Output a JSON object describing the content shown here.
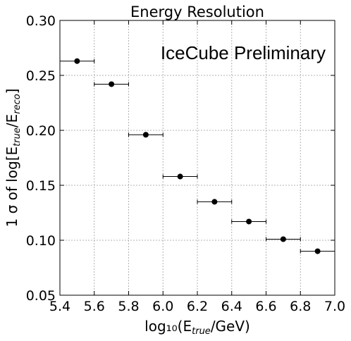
{
  "chart_data": {
    "type": "scatter",
    "title": "Energy Resolution",
    "xlabel": "log₁₀(E",
    "xlabel_sub": "true",
    "xlabel_suffix": "/GeV)",
    "ylabel": "1 σ of log[E",
    "ylabel_sub1": "true",
    "ylabel_mid": "/E",
    "ylabel_sub2": "reco",
    "ylabel_suffix": "]",
    "annotation": "IceCube Preliminary",
    "annotation_color": "#ff4d1a",
    "xlim": [
      5.4,
      7.0
    ],
    "ylim": [
      0.05,
      0.3
    ],
    "x_ticks": [
      "5.4",
      "5.6",
      "5.8",
      "6.0",
      "6.2",
      "6.4",
      "6.6",
      "6.8",
      "7.0"
    ],
    "y_ticks": [
      "0.05",
      "0.10",
      "0.15",
      "0.20",
      "0.25",
      "0.30"
    ],
    "grid": true,
    "series": [
      {
        "x": [
          5.5,
          5.7,
          5.9,
          6.1,
          6.3,
          6.5,
          6.7,
          6.9
        ],
        "y": [
          0.263,
          0.242,
          0.196,
          0.158,
          0.135,
          0.117,
          0.101,
          0.09
        ],
        "xerr": [
          0.1,
          0.1,
          0.1,
          0.1,
          0.1,
          0.1,
          0.1,
          0.1
        ]
      }
    ]
  }
}
